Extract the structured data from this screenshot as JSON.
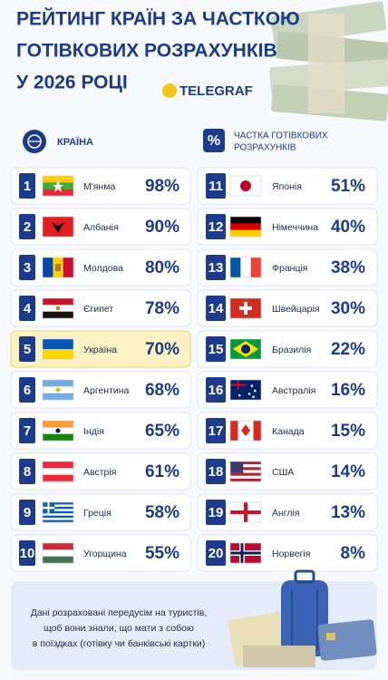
{
  "header": {
    "title_lines": [
      "РЕЙТИНГ КРАЇН ЗА ЧАСТКОЮ",
      "ГОТІВКОВИХ РОЗРАХУНКІВ",
      "У 2026 РОЦІ"
    ],
    "brand": "TELEGRAF"
  },
  "table": {
    "headers": {
      "country": "КРАЇНА",
      "share_lines": [
        "ЧАСТКА ГОТІВКОВИХ",
        "РОЗРАХУНКІВ"
      ]
    },
    "rows": [
      {
        "rank": 1,
        "country": "М'янма",
        "share": "98%"
      },
      {
        "rank": 2,
        "country": "Албанія",
        "share": "90%"
      },
      {
        "rank": 3,
        "country": "Молдова",
        "share": "80%"
      },
      {
        "rank": 4,
        "country": "Єгипет",
        "share": "78%"
      },
      {
        "rank": 5,
        "country": "Україна",
        "share": "70%"
      },
      {
        "rank": 6,
        "country": "Аргентина",
        "share": "68%"
      },
      {
        "rank": 7,
        "country": "Індія",
        "share": "65%"
      },
      {
        "rank": 8,
        "country": "Австрія",
        "share": "61%"
      },
      {
        "rank": 9,
        "country": "Греція",
        "share": "58%"
      },
      {
        "rank": 10,
        "country": "Угорщина",
        "share": "55%"
      },
      {
        "rank": 11,
        "country": "Японія",
        "share": "51%"
      },
      {
        "rank": 12,
        "country": "Німеччина",
        "share": "40%"
      },
      {
        "rank": 13,
        "country": "Франція",
        "share": "38%"
      },
      {
        "rank": 14,
        "country": "Швейцарія",
        "share": "30%"
      },
      {
        "rank": 15,
        "country": "Бразилія",
        "share": "22%"
      },
      {
        "rank": 16,
        "country": "Австралія",
        "share": "16%"
      },
      {
        "rank": 17,
        "country": "Канада",
        "share": "15%"
      },
      {
        "rank": 18,
        "country": "США",
        "share": "14%"
      },
      {
        "rank": 19,
        "country": "Англія",
        "share": "13%"
      },
      {
        "rank": 20,
        "country": "Норвегія",
        "share": "8%"
      }
    ]
  },
  "footer": {
    "note_lines": [
      "Дані розраховані передусім на туристів,",
      "щоб вони знали, що мати з собою",
      "в поїздках (готівку чи банківські картки)"
    ]
  }
}
